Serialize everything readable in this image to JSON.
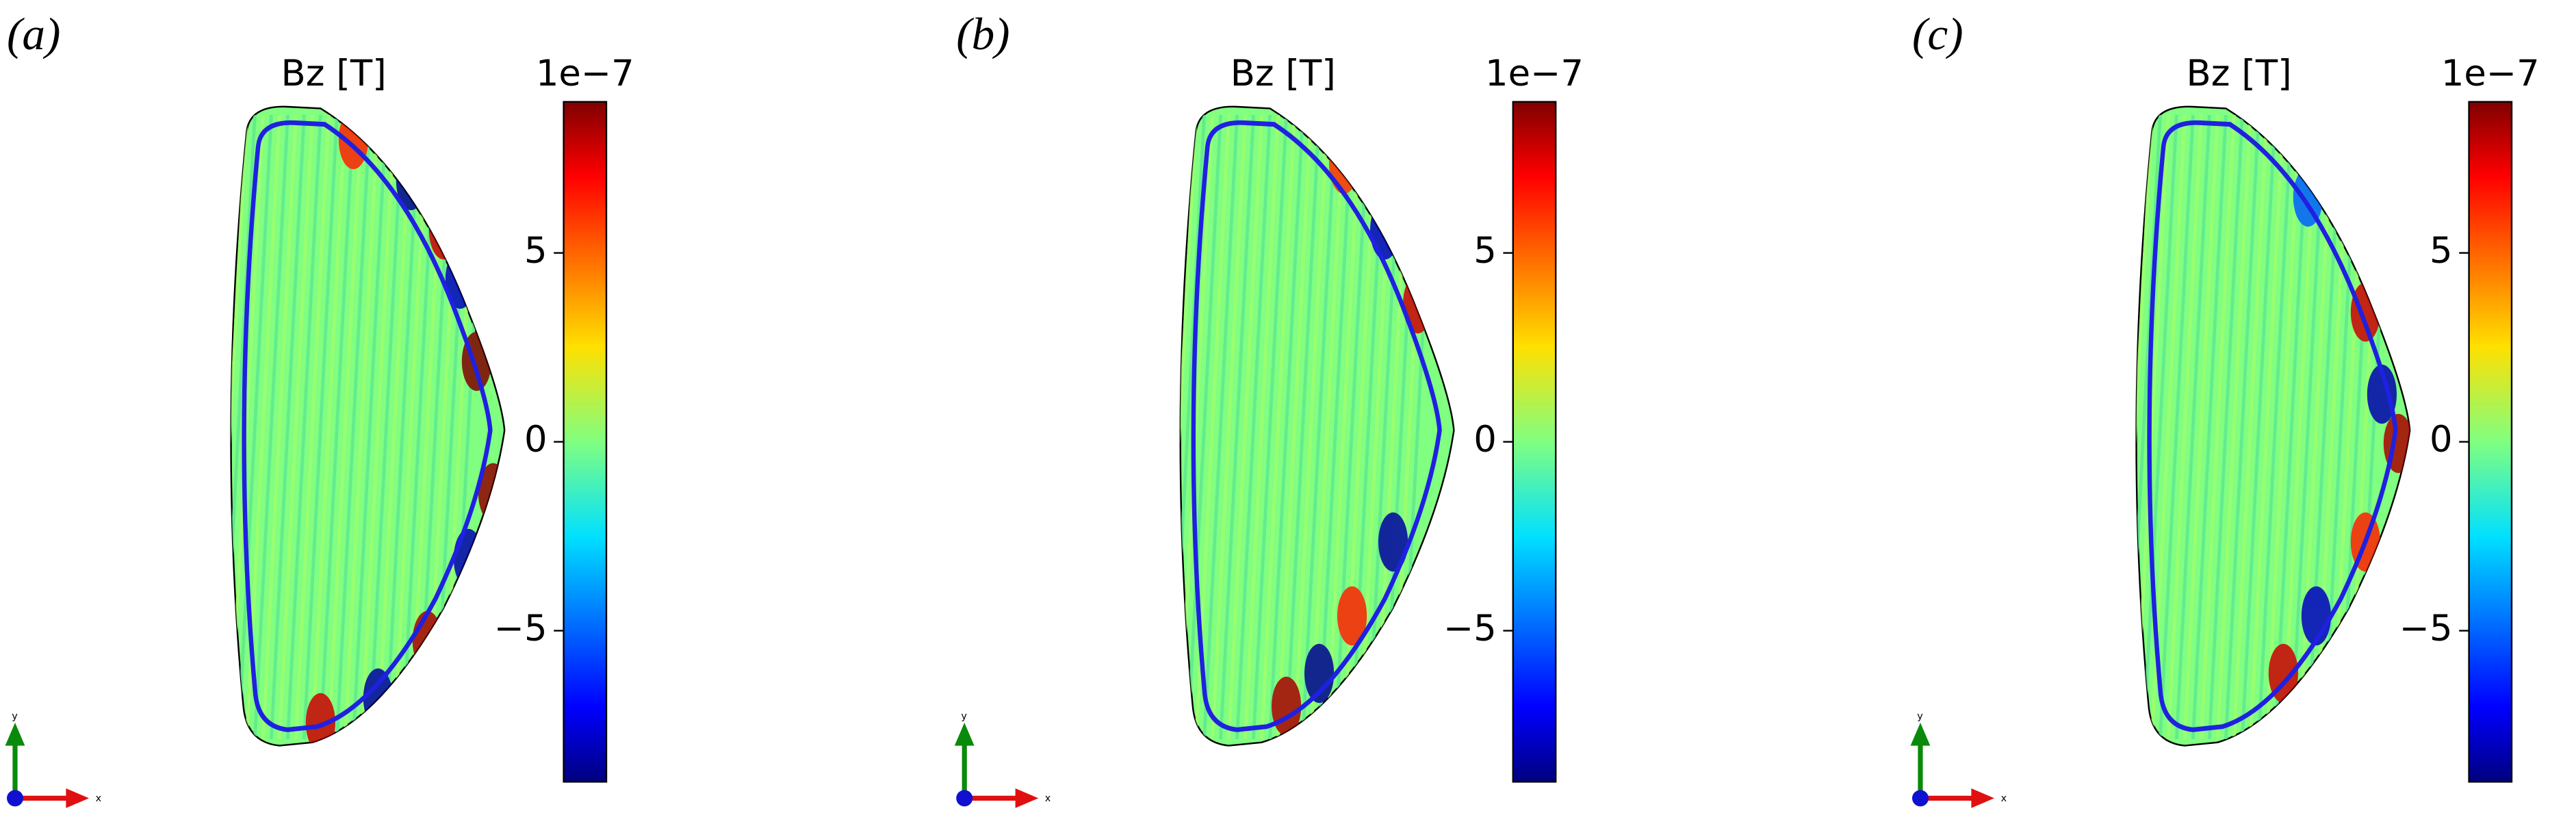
{
  "panels": [
    {
      "label": "(a)",
      "title": "Bz [T]",
      "colorbar": {
        "offset_label": "1e−7",
        "lim": [
          -9,
          9
        ],
        "ticks": [
          {
            "value": 5,
            "label": "5"
          },
          {
            "value": 0,
            "label": "0"
          },
          {
            "value": -5,
            "label": "−5"
          }
        ]
      },
      "axes": {
        "y": "y",
        "x": "x"
      }
    },
    {
      "label": "(b)",
      "title": "Bz [T]",
      "colorbar": {
        "offset_label": "1e−7",
        "lim": [
          -9,
          9
        ],
        "ticks": [
          {
            "value": 5,
            "label": "5"
          },
          {
            "value": 0,
            "label": "0"
          },
          {
            "value": -5,
            "label": "−5"
          }
        ]
      },
      "axes": {
        "y": "y",
        "x": "x"
      }
    },
    {
      "label": "(c)",
      "title": "Bz [T]",
      "colorbar": {
        "offset_label": "1e−7",
        "lim": [
          -9,
          9
        ],
        "ticks": [
          {
            "value": 5,
            "label": "5"
          },
          {
            "value": 0,
            "label": "0"
          },
          {
            "value": -5,
            "label": "−5"
          }
        ]
      },
      "axes": {
        "y": "y",
        "x": "x"
      }
    }
  ]
}
